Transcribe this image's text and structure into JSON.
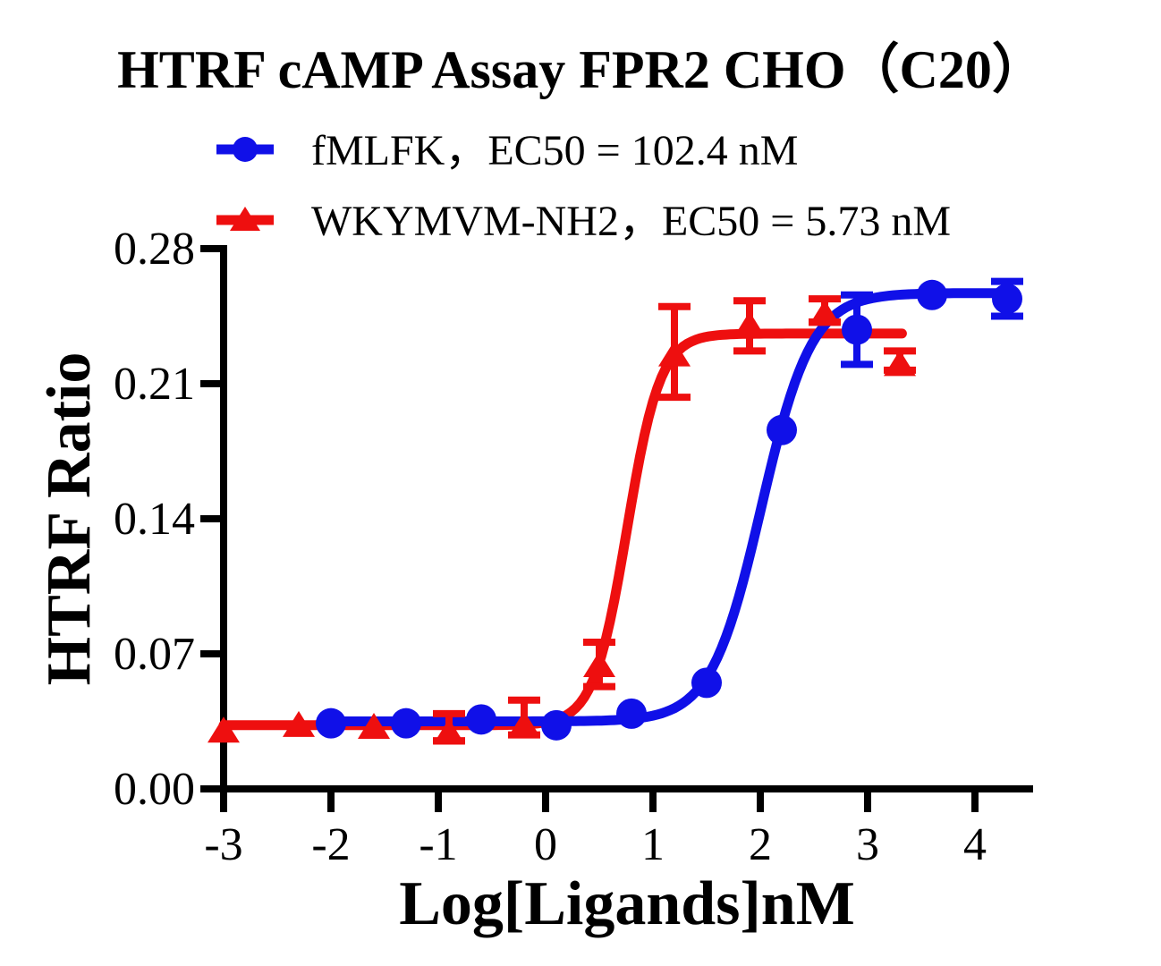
{
  "chart_data": {
    "type": "line",
    "title": "HTRF cAMP Assay FPR2 CHO（C20）",
    "xlabel": "Log[Ligands]nM",
    "ylabel": "HTRF Ratio",
    "xlim": [
      -3,
      4.55
    ],
    "ylim": [
      0,
      0.28
    ],
    "x_ticks": [
      -3,
      -2,
      -1,
      0,
      1,
      2,
      3,
      4
    ],
    "x_tick_labels": [
      "-3",
      "-2",
      "-1",
      "0",
      "1",
      "2",
      "3",
      "4"
    ],
    "y_ticks": [
      0,
      0.07,
      0.14,
      0.21,
      0.28
    ],
    "y_tick_labels": [
      "0.00",
      "0.07",
      "0.14",
      "0.21",
      "0.28"
    ],
    "grid": false,
    "legend_position": "top-left",
    "series": [
      {
        "name": "fMLFK",
        "label": "fMLFK，EC50 = 102.4 nM",
        "ec50_nM": 102.4,
        "color": "#1010e8",
        "marker": "circle",
        "points": [
          [
            -2.0,
            0.034,
            0,
            0
          ],
          [
            -1.3,
            0.034,
            0,
            0
          ],
          [
            -0.6,
            0.036,
            0,
            0
          ],
          [
            0.1,
            0.033,
            0,
            0
          ],
          [
            0.8,
            0.039,
            0,
            0
          ],
          [
            1.5,
            0.055,
            0,
            0
          ],
          [
            2.2,
            0.186,
            0,
            0
          ],
          [
            2.9,
            0.238,
            0.018,
            0.018
          ],
          [
            3.6,
            0.256,
            0,
            0
          ],
          [
            4.3,
            0.254,
            0.009,
            0.009
          ]
        ],
        "fit": {
          "bottom": 0.035,
          "top": 0.257,
          "log_ec50": 2.01,
          "hill": 1.85,
          "x_start": -2.0,
          "x_end": 4.32
        }
      },
      {
        "name": "WKYMVM-NH2",
        "label": "WKYMVM-NH2，EC50 = 5.73 nM",
        "ec50_nM": 5.73,
        "color": "#ee0f0f",
        "marker": "triangle",
        "points": [
          [
            -3.0,
            0.03,
            0,
            0
          ],
          [
            -2.3,
            0.033,
            0,
            0
          ],
          [
            -1.6,
            0.032,
            0,
            0
          ],
          [
            -0.9,
            0.029,
            0.004,
            0.01
          ],
          [
            -0.2,
            0.033,
            0.005,
            0.013
          ],
          [
            0.5,
            0.064,
            0.011,
            0.012
          ],
          [
            1.2,
            0.225,
            0.022,
            0.025
          ],
          [
            1.9,
            0.24,
            0.013,
            0.013
          ],
          [
            2.6,
            0.246,
            0.004,
            0.008
          ],
          [
            3.3,
            0.22,
            0.003,
            0.007
          ]
        ],
        "fit": {
          "bottom": 0.033,
          "top": 0.236,
          "log_ec50": 0.758,
          "hill": 2.8,
          "x_start": -3.0,
          "x_end": 3.33
        }
      }
    ]
  }
}
